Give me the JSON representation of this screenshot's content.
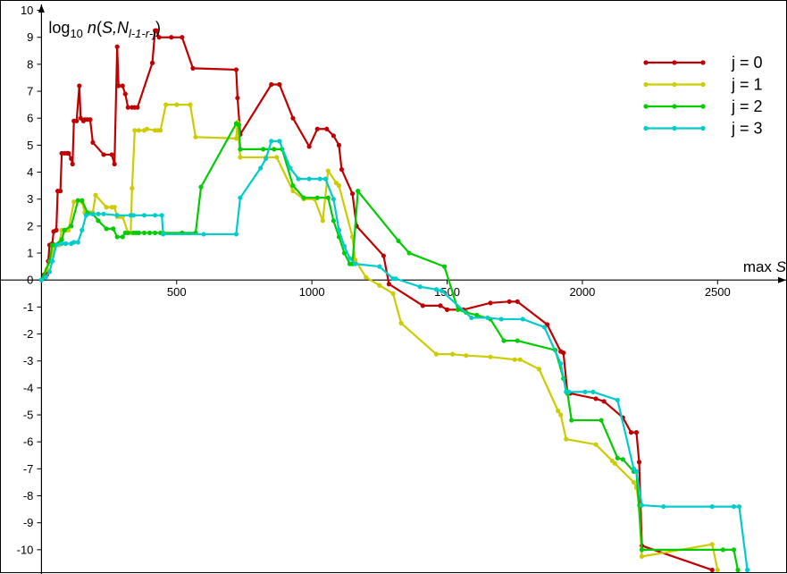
{
  "chart_data": {
    "type": "line",
    "xlabel": "max S",
    "ylabel": {
      "prefix": "log",
      "base": "10",
      "func": " n(S,N",
      "subscript": "l-1-r-j",
      "suffix": ")"
    },
    "xlim": [
      -150,
      2760
    ],
    "ylim": [
      -10.9,
      10.35
    ],
    "x_ticks": [
      500,
      1000,
      1500,
      2000,
      2500
    ],
    "y_ticks": [
      -10,
      -9,
      -8,
      -7,
      -6,
      -5,
      -4,
      -3,
      -2,
      -1,
      0,
      1,
      2,
      3,
      4,
      5,
      6,
      7,
      8,
      9,
      10
    ],
    "grid": false,
    "legend_position": "top-right",
    "series": [
      {
        "name": "j = 0",
        "color": "#c00000",
        "points": [
          [
            0,
            0
          ],
          [
            10,
            0.2
          ],
          [
            20,
            0.2
          ],
          [
            25,
            0.7
          ],
          [
            30,
            1.3
          ],
          [
            40,
            1.35
          ],
          [
            45,
            1.8
          ],
          [
            55,
            1.85
          ],
          [
            60,
            3.3
          ],
          [
            70,
            3.3
          ],
          [
            75,
            4.7
          ],
          [
            85,
            4.7
          ],
          [
            95,
            4.7
          ],
          [
            100,
            4.7
          ],
          [
            110,
            4.5
          ],
          [
            115,
            4.3
          ],
          [
            120,
            5.9
          ],
          [
            130,
            5.9
          ],
          [
            140,
            7.2
          ],
          [
            145,
            6.0
          ],
          [
            155,
            5.9
          ],
          [
            160,
            5.95
          ],
          [
            170,
            5.95
          ],
          [
            180,
            5.95
          ],
          [
            190,
            5.1
          ],
          [
            230,
            4.65
          ],
          [
            260,
            4.65
          ],
          [
            270,
            4.3
          ],
          [
            280,
            8.65
          ],
          [
            285,
            7.2
          ],
          [
            300,
            7.2
          ],
          [
            310,
            6.9
          ],
          [
            320,
            6.4
          ],
          [
            335,
            6.4
          ],
          [
            345,
            6.4
          ],
          [
            355,
            6.4
          ],
          [
            410,
            8.05
          ],
          [
            420,
            9.25
          ],
          [
            425,
            9.25
          ],
          [
            435,
            9.0
          ],
          [
            480,
            9.0
          ],
          [
            520,
            9.0
          ],
          [
            560,
            7.85
          ],
          [
            720,
            7.8
          ],
          [
            725,
            6.75
          ],
          [
            735,
            5.4
          ],
          [
            850,
            7.25
          ],
          [
            880,
            7.25
          ],
          [
            930,
            6.0
          ],
          [
            990,
            4.95
          ],
          [
            1020,
            5.6
          ],
          [
            1055,
            5.6
          ],
          [
            1080,
            5.35
          ],
          [
            1100,
            5.0
          ],
          [
            1110,
            4.1
          ],
          [
            1150,
            3.2
          ],
          [
            1165,
            2.0
          ],
          [
            1265,
            0.9
          ],
          [
            1285,
            -0.15
          ],
          [
            1410,
            -0.95
          ],
          [
            1475,
            -0.95
          ],
          [
            1500,
            -1.1
          ],
          [
            1560,
            -1.1
          ],
          [
            1660,
            -0.85
          ],
          [
            1730,
            -0.8
          ],
          [
            1760,
            -0.8
          ],
          [
            1870,
            -1.65
          ],
          [
            1920,
            -2.65
          ],
          [
            1930,
            -2.7
          ],
          [
            1945,
            -4.2
          ],
          [
            1955,
            -4.2
          ],
          [
            2050,
            -4.4
          ],
          [
            2080,
            -4.5
          ],
          [
            2150,
            -5.1
          ],
          [
            2180,
            -5.65
          ],
          [
            2200,
            -5.65
          ],
          [
            2210,
            -6.75
          ],
          [
            2220,
            -9.85
          ],
          [
            2480,
            -10.75
          ]
        ]
      },
      {
        "name": "j = 1",
        "color": "#cccc00",
        "points": [
          [
            0,
            0
          ],
          [
            20,
            0.4
          ],
          [
            40,
            0.95
          ],
          [
            50,
            1.3
          ],
          [
            65,
            1.3
          ],
          [
            75,
            1.85
          ],
          [
            90,
            1.85
          ],
          [
            100,
            1.85
          ],
          [
            120,
            2.9
          ],
          [
            135,
            2.95
          ],
          [
            150,
            2.9
          ],
          [
            160,
            2.5
          ],
          [
            180,
            2.5
          ],
          [
            190,
            2.5
          ],
          [
            200,
            3.15
          ],
          [
            240,
            2.7
          ],
          [
            260,
            2.7
          ],
          [
            270,
            2.7
          ],
          [
            280,
            2.35
          ],
          [
            290,
            2.35
          ],
          [
            300,
            2.35
          ],
          [
            320,
            1.75
          ],
          [
            330,
            1.75
          ],
          [
            335,
            3.4
          ],
          [
            345,
            5.55
          ],
          [
            360,
            5.55
          ],
          [
            380,
            5.55
          ],
          [
            390,
            5.6
          ],
          [
            420,
            5.55
          ],
          [
            430,
            5.55
          ],
          [
            440,
            5.55
          ],
          [
            460,
            6.5
          ],
          [
            500,
            6.5
          ],
          [
            550,
            6.5
          ],
          [
            570,
            5.3
          ],
          [
            720,
            5.25
          ],
          [
            725,
            5.85
          ],
          [
            735,
            4.55
          ],
          [
            830,
            4.55
          ],
          [
            870,
            4.55
          ],
          [
            930,
            3.3
          ],
          [
            970,
            3.0
          ],
          [
            1010,
            3.0
          ],
          [
            1040,
            2.2
          ],
          [
            1060,
            4.05
          ],
          [
            1090,
            3.6
          ],
          [
            1100,
            3.5
          ],
          [
            1150,
            1.6
          ],
          [
            1160,
            0.75
          ],
          [
            1200,
            0.1
          ],
          [
            1250,
            -0.2
          ],
          [
            1300,
            -0.5
          ],
          [
            1330,
            -1.6
          ],
          [
            1460,
            -2.75
          ],
          [
            1520,
            -2.75
          ],
          [
            1570,
            -2.8
          ],
          [
            1660,
            -2.85
          ],
          [
            1750,
            -2.95
          ],
          [
            1770,
            -2.95
          ],
          [
            1840,
            -3.3
          ],
          [
            1910,
            -4.85
          ],
          [
            1920,
            -5.0
          ],
          [
            1940,
            -5.9
          ],
          [
            2050,
            -6.1
          ],
          [
            2110,
            -6.7
          ],
          [
            2120,
            -6.8
          ],
          [
            2190,
            -7.5
          ],
          [
            2200,
            -7.7
          ],
          [
            2210,
            -8.35
          ],
          [
            2220,
            -10.25
          ],
          [
            2480,
            -9.8
          ],
          [
            2500,
            -10.75
          ]
        ]
      },
      {
        "name": "j = 2",
        "color": "#00cc00",
        "points": [
          [
            0,
            0
          ],
          [
            30,
            0.7
          ],
          [
            40,
            1.3
          ],
          [
            50,
            1.3
          ],
          [
            75,
            1.5
          ],
          [
            85,
            1.85
          ],
          [
            110,
            2.0
          ],
          [
            135,
            2.95
          ],
          [
            150,
            2.95
          ],
          [
            170,
            2.5
          ],
          [
            190,
            2.45
          ],
          [
            210,
            2.2
          ],
          [
            240,
            1.9
          ],
          [
            265,
            1.9
          ],
          [
            280,
            1.6
          ],
          [
            300,
            1.6
          ],
          [
            310,
            1.75
          ],
          [
            320,
            1.75
          ],
          [
            340,
            1.75
          ],
          [
            350,
            1.75
          ],
          [
            360,
            1.75
          ],
          [
            380,
            1.75
          ],
          [
            400,
            1.75
          ],
          [
            420,
            1.75
          ],
          [
            440,
            1.75
          ],
          [
            450,
            1.75
          ],
          [
            520,
            1.75
          ],
          [
            570,
            1.75
          ],
          [
            590,
            3.45
          ],
          [
            720,
            5.8
          ],
          [
            730,
            5.75
          ],
          [
            735,
            4.85
          ],
          [
            820,
            4.85
          ],
          [
            860,
            4.85
          ],
          [
            890,
            4.85
          ],
          [
            930,
            3.5
          ],
          [
            970,
            3.05
          ],
          [
            1020,
            3.05
          ],
          [
            1060,
            3.05
          ],
          [
            1080,
            2.2
          ],
          [
            1100,
            1.6
          ],
          [
            1120,
            1.0
          ],
          [
            1140,
            0.6
          ],
          [
            1150,
            0.6
          ],
          [
            1170,
            3.3
          ],
          [
            1320,
            1.45
          ],
          [
            1360,
            1.0
          ],
          [
            1490,
            0.5
          ],
          [
            1540,
            -1.1
          ],
          [
            1570,
            -1.2
          ],
          [
            1610,
            -1.3
          ],
          [
            1660,
            -1.45
          ],
          [
            1710,
            -2.25
          ],
          [
            1760,
            -2.25
          ],
          [
            1900,
            -2.6
          ],
          [
            1930,
            -3.65
          ],
          [
            1945,
            -4.2
          ],
          [
            1960,
            -5.2
          ],
          [
            2070,
            -5.2
          ],
          [
            2130,
            -6.6
          ],
          [
            2150,
            -6.65
          ],
          [
            2190,
            -7.1
          ],
          [
            2200,
            -7.1
          ],
          [
            2220,
            -10.0
          ],
          [
            2520,
            -10.0
          ],
          [
            2560,
            -10.0
          ],
          [
            2575,
            -10.75
          ]
        ]
      },
      {
        "name": "j = 3",
        "color": "#00cccc",
        "points": [
          [
            0,
            0
          ],
          [
            15,
            0.1
          ],
          [
            30,
            0.3
          ],
          [
            40,
            0.7
          ],
          [
            55,
            1.3
          ],
          [
            75,
            1.35
          ],
          [
            90,
            1.35
          ],
          [
            110,
            1.35
          ],
          [
            120,
            1.4
          ],
          [
            135,
            1.4
          ],
          [
            150,
            1.85
          ],
          [
            165,
            2.4
          ],
          [
            190,
            2.45
          ],
          [
            210,
            2.45
          ],
          [
            230,
            2.45
          ],
          [
            280,
            2.4
          ],
          [
            330,
            2.4
          ],
          [
            340,
            2.4
          ],
          [
            380,
            2.4
          ],
          [
            420,
            2.4
          ],
          [
            445,
            2.4
          ],
          [
            450,
            1.7
          ],
          [
            600,
            1.7
          ],
          [
            720,
            1.7
          ],
          [
            735,
            3.05
          ],
          [
            810,
            4.15
          ],
          [
            830,
            4.5
          ],
          [
            850,
            5.15
          ],
          [
            880,
            5.15
          ],
          [
            920,
            4.15
          ],
          [
            950,
            3.75
          ],
          [
            990,
            3.75
          ],
          [
            1030,
            3.75
          ],
          [
            1050,
            3.75
          ],
          [
            1080,
            3.0
          ],
          [
            1100,
            1.85
          ],
          [
            1120,
            1.25
          ],
          [
            1140,
            0.8
          ],
          [
            1160,
            0.6
          ],
          [
            1250,
            0.5
          ],
          [
            1300,
            0.05
          ],
          [
            1310,
            0.05
          ],
          [
            1400,
            -0.25
          ],
          [
            1460,
            -0.35
          ],
          [
            1480,
            -0.4
          ],
          [
            1590,
            -1.4
          ],
          [
            1650,
            -1.4
          ],
          [
            1700,
            -1.45
          ],
          [
            1780,
            -1.45
          ],
          [
            1860,
            -1.75
          ],
          [
            1920,
            -3.1
          ],
          [
            1940,
            -4.15
          ],
          [
            1950,
            -4.15
          ],
          [
            2010,
            -4.15
          ],
          [
            2040,
            -4.15
          ],
          [
            2130,
            -4.45
          ],
          [
            2190,
            -7.0
          ],
          [
            2200,
            -7.1
          ],
          [
            2220,
            -8.35
          ],
          [
            2300,
            -8.4
          ],
          [
            2480,
            -8.4
          ],
          [
            2560,
            -8.4
          ],
          [
            2580,
            -8.4
          ],
          [
            2610,
            -10.75
          ]
        ]
      }
    ]
  }
}
